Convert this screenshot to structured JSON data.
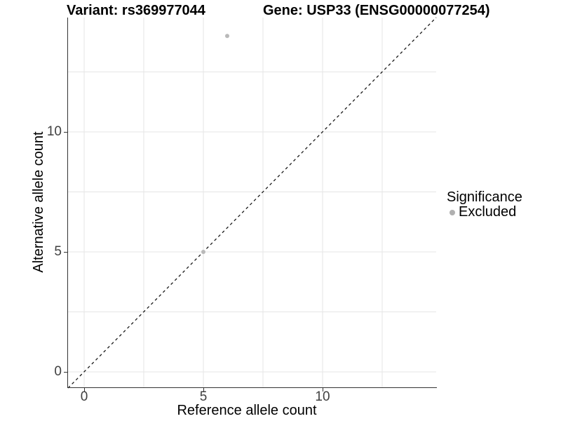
{
  "titles": {
    "variant": "Variant: rs369977044",
    "gene": "Gene: USP33 (ENSG00000077254)"
  },
  "chart_data": {
    "type": "scatter",
    "xlabel": "Reference allele count",
    "ylabel": "Alternative allele count",
    "xlim": [
      -0.7,
      14.8
    ],
    "ylim": [
      -0.7,
      14.8
    ],
    "x_ticks": {
      "values": [
        0,
        5,
        10
      ],
      "labels": [
        "0",
        "5",
        "10"
      ]
    },
    "y_ticks": {
      "values": [
        0,
        5,
        10
      ],
      "labels": [
        "0",
        "5",
        "10"
      ]
    },
    "minor_ticks": [
      2.5,
      7.5,
      12.5
    ],
    "grid": true,
    "grid_color": "#e5e5e5",
    "axis_color": "#333333",
    "points": [
      {
        "x": 5,
        "y": 5,
        "series": "Excluded"
      },
      {
        "x": 6,
        "y": 14,
        "series": "Excluded"
      }
    ],
    "point_color": "#b9b9b9",
    "point_radius": 3,
    "identity_line": {
      "style": "dashed",
      "slope": 1,
      "intercept": 0,
      "color": "#1a1a1a"
    },
    "legend": {
      "title": "Significance",
      "position": "right",
      "items": [
        {
          "label": "Excluded",
          "color": "#b0b0b0"
        }
      ]
    }
  }
}
